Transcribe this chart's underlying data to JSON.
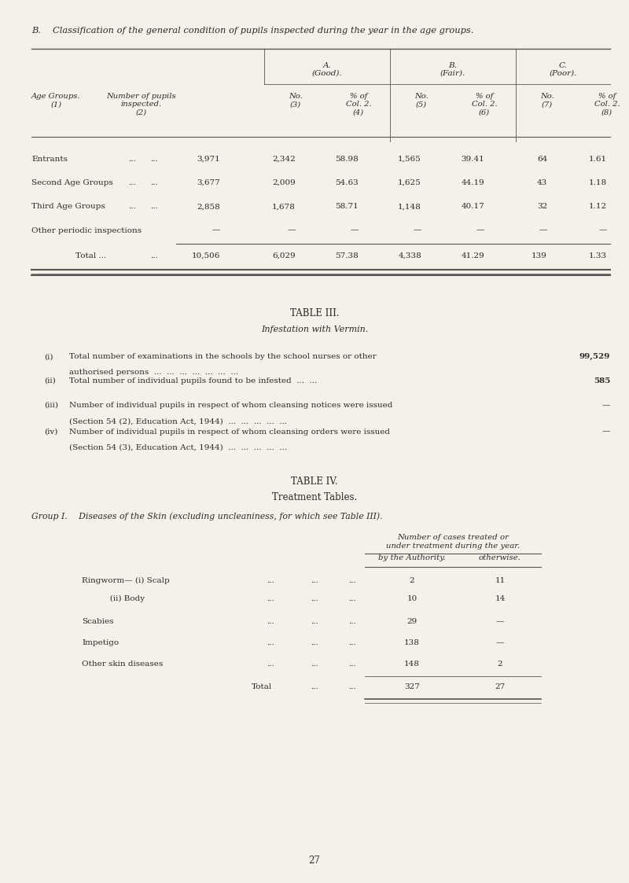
{
  "bg_color": "#f5f0e8",
  "text_color": "#2a2a2a",
  "page_width": 8.0,
  "page_height": 11.23,
  "title_b": "B.  Classification of the general condition of pupils inspected during the year in the age groups.",
  "table_b_headers_top": [
    "",
    "",
    "A.\n(Good).",
    "B.\n(Fair).",
    "C.\n(Poor)."
  ],
  "table_b_headers_sub": [
    "Age Groups.\n(1)",
    "Number of pupils\ninspected.\n(2)",
    "No.\n(3)",
    "% of\nCol. 2.\n(4)",
    "No.\n(5)",
    "% of\nCol. 2.\n(6)",
    "No.\n(7)",
    "% of\nCol. 2.\n(8)"
  ],
  "table_b_rows": [
    [
      "Entrants",
      "3,971",
      "2,342",
      "58.98",
      "1,565",
      "39.41",
      "64",
      "1.61"
    ],
    [
      "Second Age Groups",
      "3,677",
      "2,009",
      "54.63",
      "1,625",
      "44.19",
      "43",
      "1.18"
    ],
    [
      "Third Age Groups",
      "2,858",
      "1,678",
      "58.71",
      "1,148",
      "40.17",
      "32",
      "1.12"
    ],
    [
      "Other periodic inspections",
      "—",
      "—",
      "—",
      "—",
      "—",
      "—",
      "—"
    ],
    [
      "Total ...",
      "10,506",
      "6,029",
      "57.38",
      "4,338",
      "41.29",
      "139",
      "1.33"
    ]
  ],
  "table3_title": "TABLE III.",
  "table3_subtitle": "Infestation with Vermin.",
  "table3_items": [
    [
      "(i)",
      "Total number of examinations in the schools by the school nurses or other\nauthorised persons  ...  ...  ...  ...  ...  ...  ...",
      "99,529"
    ],
    [
      "(ii)",
      "Total number of individual pupils found to be infested  ...  ...",
      "585"
    ],
    [
      "(iii)",
      "Number of individual pupils in respect of whom cleansing notices were issued\n(Section 54 (2), Education Act, 1944)  ...  ...  ...  ...  ...",
      "—"
    ],
    [
      "(iv)",
      "Number of individual pupils in respect of whom cleansing orders were issued\n(Section 54 (3), Education Act, 1944)  ...  ...  ...  ...  ...",
      "—"
    ]
  ],
  "table4_title": "TABLE IV.",
  "table4_subtitle": "Treatment Tables.",
  "table4_group": "Group I.  Diseases of the Skin (excluding uncleaniness, for which see Table III).",
  "table4_col_header": "Number of cases treated or\nunder treatment during the year.",
  "table4_col_sub1": "by the Authority.",
  "table4_col_sub2": "otherwise.",
  "table4_rows": [
    [
      "Ringworm— (i) Scalp",
      "...",
      "...",
      "...",
      "2",
      "11"
    ],
    [
      "           (ii) Body",
      "...",
      "...",
      "...",
      "10",
      "14"
    ],
    [
      "Scabies",
      "...",
      "...",
      "...",
      "29",
      "—"
    ],
    [
      "Impetigo",
      "...",
      "...",
      "...",
      "138",
      "—"
    ],
    [
      "Other skin diseases",
      "...",
      "...",
      "...",
      "148",
      "2"
    ],
    [
      "",
      "Total",
      "...",
      "...",
      "327",
      "27"
    ]
  ],
  "page_num": "27"
}
